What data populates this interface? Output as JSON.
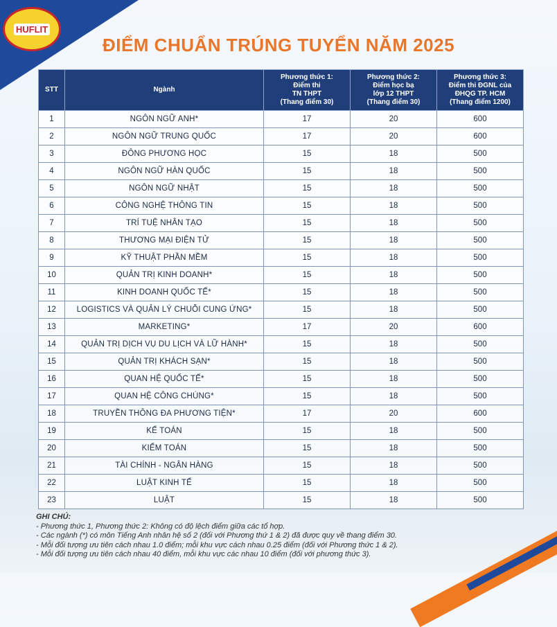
{
  "logo": "HUFLIT",
  "title": "ĐIỂM CHUẨN TRÚNG TUYỂN NĂM 2025",
  "table": {
    "headers": [
      [
        "STT"
      ],
      [
        "Ngành"
      ],
      [
        "Phương thức 1:",
        "Điểm thi",
        "TN THPT",
        "(Thang điểm 30)"
      ],
      [
        "Phương thức 2:",
        "Điểm học bạ",
        "lớp 12 THPT",
        "(Thang điểm 30)"
      ],
      [
        "Phương thức 3:",
        "Điểm thi ĐGNL của",
        "ĐHQG TP. HCM",
        "(Thang điểm 1200)"
      ]
    ],
    "rows": [
      [
        1,
        "NGÔN NGỮ ANH*",
        17,
        20,
        600
      ],
      [
        2,
        "NGÔN NGỮ TRUNG QUỐC",
        17,
        20,
        600
      ],
      [
        3,
        "ĐÔNG PHƯƠNG HỌC",
        15,
        18,
        500
      ],
      [
        4,
        "NGÔN NGỮ HÀN QUỐC",
        15,
        18,
        500
      ],
      [
        5,
        "NGÔN NGỮ NHẬT",
        15,
        18,
        500
      ],
      [
        6,
        "CÔNG NGHỆ THÔNG TIN",
        15,
        18,
        500
      ],
      [
        7,
        "TRÍ TUỆ NHÂN TẠO",
        15,
        18,
        500
      ],
      [
        8,
        "THƯƠNG MẠI ĐIỆN TỬ",
        15,
        18,
        500
      ],
      [
        9,
        "KỸ THUẬT PHẦN MỀM",
        15,
        18,
        500
      ],
      [
        10,
        "QUẢN TRỊ KINH DOANH*",
        15,
        18,
        500
      ],
      [
        11,
        "KINH DOANH QUỐC TẾ*",
        15,
        18,
        500
      ],
      [
        12,
        "LOGISTICS VÀ QUẢN LÝ CHUỖI CUNG ỨNG*",
        15,
        18,
        500
      ],
      [
        13,
        "MARKETING*",
        17,
        20,
        600
      ],
      [
        14,
        "QUẢN TRỊ DỊCH VỤ DU LỊCH VÀ LỮ HÀNH*",
        15,
        18,
        500
      ],
      [
        15,
        "QUẢN TRỊ KHÁCH SẠN*",
        15,
        18,
        500
      ],
      [
        16,
        "QUAN HỆ QUỐC TẾ*",
        15,
        18,
        500
      ],
      [
        17,
        "QUAN HỆ CÔNG CHÚNG*",
        15,
        18,
        500
      ],
      [
        18,
        "TRUYỀN THÔNG ĐA PHƯƠNG TIỆN*",
        17,
        20,
        600
      ],
      [
        19,
        "KẾ TOÁN",
        15,
        18,
        500
      ],
      [
        20,
        "KIỂM TOÁN",
        15,
        18,
        500
      ],
      [
        21,
        "TÀI CHÍNH - NGÂN HÀNG",
        15,
        18,
        500
      ],
      [
        22,
        "LUẬT KINH TẾ",
        15,
        18,
        500
      ],
      [
        23,
        "LUẬT",
        15,
        18,
        500
      ]
    ]
  },
  "notes": {
    "title": "GHI CHÚ:",
    "items": [
      "- Phương thức 1, Phương thức 2: Không có độ lệch điểm giữa các tổ hợp.",
      "- Các ngành (*) có môn Tiếng Anh nhân hệ số 2 (đối với Phương thứ 1 & 2) đã được quy về thang điểm 30.",
      "- Mỗi đối tượng ưu tiên cách nhau 1.0 điểm; mỗi khu vực cách nhau 0.25 điểm (đối với Phương thức 1 & 2).",
      "- Mỗi đối tượng ưu tiên cách nhau 40 điểm, mỗi khu vực các nhau 10 điểm (đối với phương thức 3)."
    ]
  }
}
